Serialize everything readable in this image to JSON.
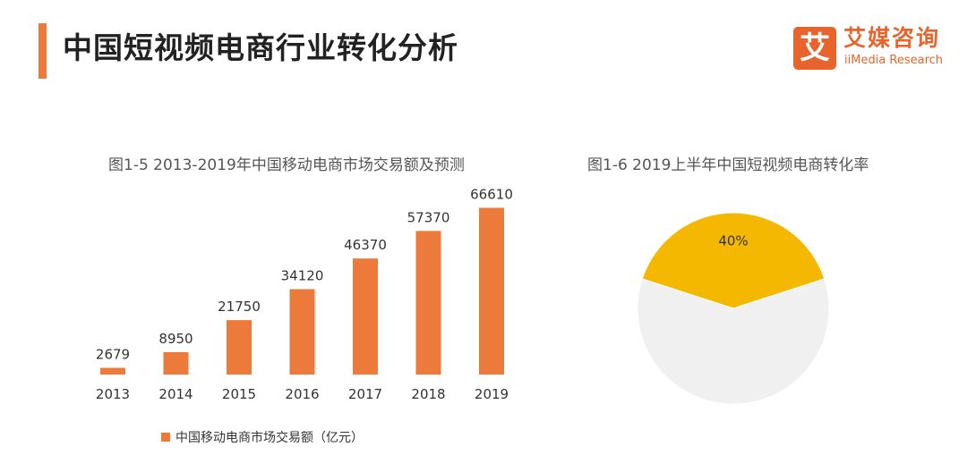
{
  "header": {
    "title": "中国短视频电商行业转化分析",
    "logo_mark": "艾",
    "logo_cn": "艾媒咨询",
    "logo_en": "iiMedia Research",
    "accent_color": "#ec7a3b"
  },
  "chart_data": [
    {
      "type": "bar",
      "title": "图1-5 2013-2019年中国移动电商市场交易额及预测",
      "categories": [
        "2013",
        "2014",
        "2015",
        "2016",
        "2017",
        "2018",
        "2019"
      ],
      "series": [
        {
          "name": "中国移动电商市场交易额（亿元）",
          "values": [
            2679,
            8950,
            21750,
            34120,
            46370,
            57370,
            66610
          ],
          "color": "#ec7a3b"
        }
      ],
      "ylim": [
        0,
        80000
      ],
      "grid": false,
      "legend": "bottom-left",
      "data_labels": true
    },
    {
      "type": "pie",
      "title": "图1-6 2019上半年中国短视频电商转化率",
      "slices": [
        {
          "label": "40%",
          "value": 40,
          "color": "#f5b800"
        },
        {
          "value": 60,
          "color": "#f0f0f0"
        }
      ]
    }
  ]
}
